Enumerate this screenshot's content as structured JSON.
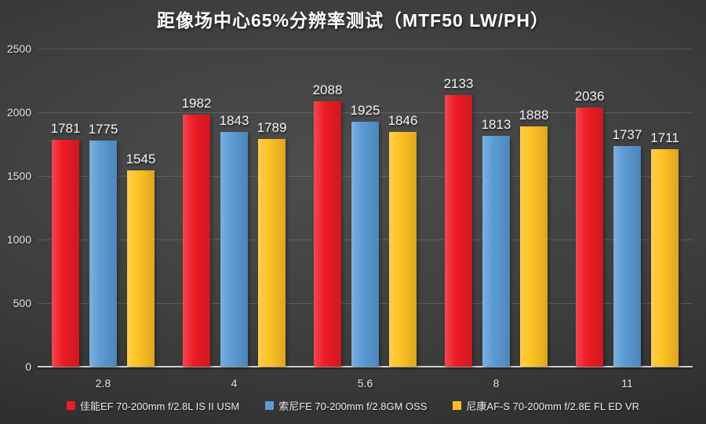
{
  "header": {
    "title": "距像场中心65%分辨率测试（MTF50 LW/PH）"
  },
  "chart_data": {
    "type": "bar",
    "title": "距像场中心65%分辨率测试（MTF50 LW/PH）",
    "categories": [
      "2.8",
      "4",
      "5.6",
      "8",
      "11"
    ],
    "series": [
      {
        "name": "佳能EF 70-200mm f/2.8L IS II USM",
        "color": "#EE1C25",
        "values": [
          1781,
          1982,
          2088,
          2133,
          2036
        ]
      },
      {
        "name": "索尼FE 70-200mm f/2.8GM OSS",
        "color": "#5B9BD5",
        "values": [
          1775,
          1843,
          1925,
          1813,
          1737
        ]
      },
      {
        "name": "尼康AF-S 70-200mm f/2.8E FL ED VR",
        "color": "#FFC224",
        "values": [
          1545,
          1789,
          1846,
          1888,
          1711
        ]
      }
    ],
    "xlabel": "",
    "ylabel": "",
    "ylim": [
      0,
      2500
    ],
    "yticks": [
      0,
      500,
      1000,
      1500,
      2000,
      2500
    ],
    "grid": true,
    "legend_position": "bottom",
    "background": "dark-gray-radial",
    "value_labels_shown": true
  }
}
